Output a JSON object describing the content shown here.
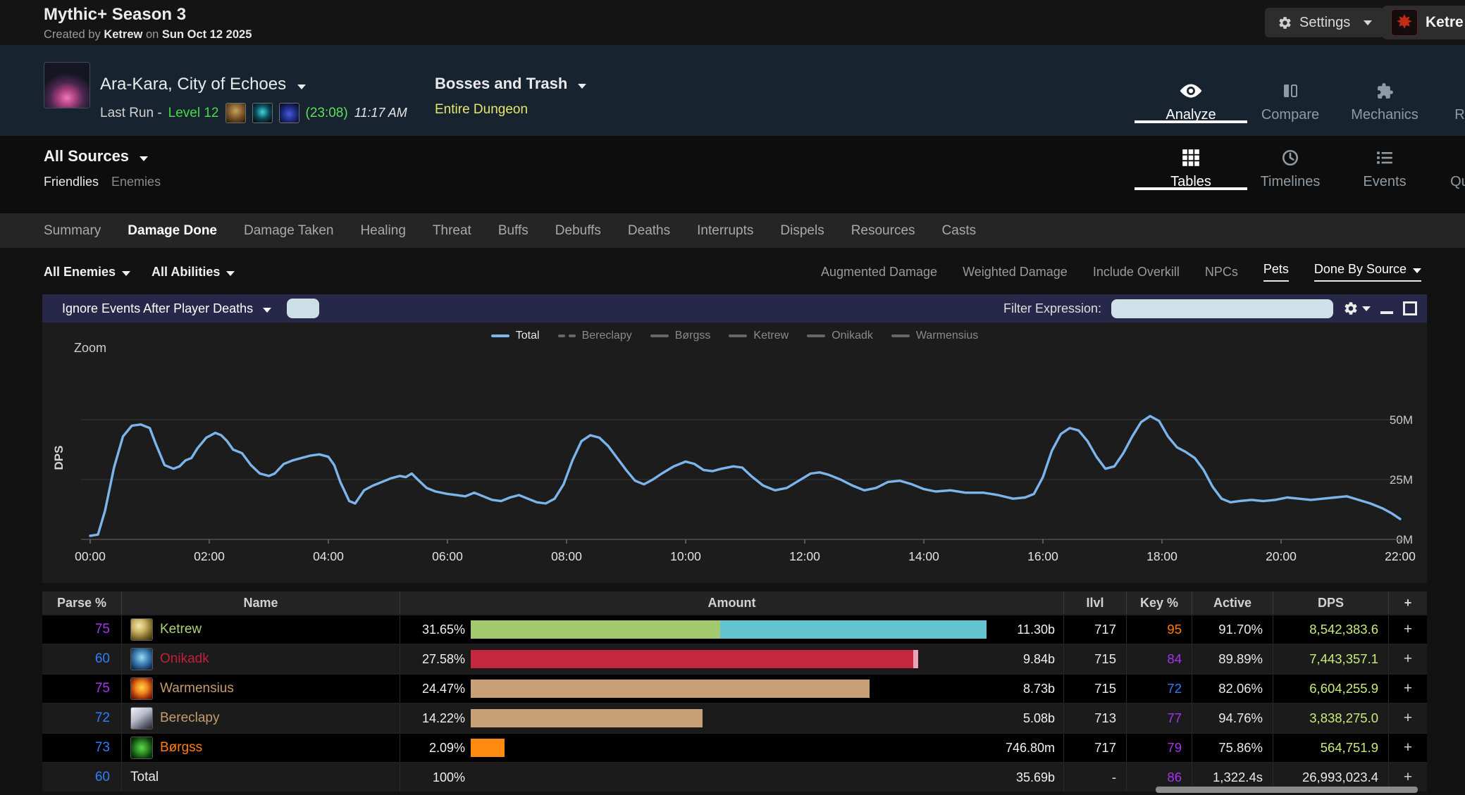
{
  "header": {
    "title": "Mythic+ Season 3",
    "byline_prefix": "Created by",
    "byline_author": "Ketrew",
    "byline_on": "on",
    "byline_date": "Sun Oct 12 2025",
    "settings_label": "Settings",
    "account_label": "Ketre"
  },
  "report_bar": {
    "dungeon": "Ara-Kara, City of Echoes",
    "run_prefix": "Last Run -",
    "run_level": "Level 12",
    "run_level_color": "#49d849",
    "keystone_time": "(23:08)",
    "keystone_time_color": "#5ce05c",
    "wall_time": "11:17 AM",
    "pull_label": "Bosses and Trash",
    "pull_scope": "Entire Dungeon",
    "pull_scope_color": "#e6e66e",
    "views": [
      {
        "label": "Analyze",
        "active": true
      },
      {
        "label": "Compare",
        "active": false
      },
      {
        "label": "Mechanics",
        "active": false
      },
      {
        "label": "Ra",
        "active": false
      }
    ]
  },
  "source_bar": {
    "dropdown_label": "All Sources",
    "friendlies": "Friendlies",
    "enemies": "Enemies",
    "views": [
      {
        "label": "Tables",
        "active": true
      },
      {
        "label": "Timelines",
        "active": false
      },
      {
        "label": "Events",
        "active": false
      },
      {
        "label": "Que",
        "active": false
      }
    ]
  },
  "tabs": [
    {
      "label": "Summary",
      "active": false
    },
    {
      "label": "Damage Done",
      "active": true
    },
    {
      "label": "Damage Taken",
      "active": false
    },
    {
      "label": "Healing",
      "active": false
    },
    {
      "label": "Threat",
      "active": false
    },
    {
      "label": "Buffs",
      "active": false
    },
    {
      "label": "Debuffs",
      "active": false
    },
    {
      "label": "Deaths",
      "active": false
    },
    {
      "label": "Interrupts",
      "active": false
    },
    {
      "label": "Dispels",
      "active": false
    },
    {
      "label": "Resources",
      "active": false
    },
    {
      "label": "Casts",
      "active": false
    }
  ],
  "options_row": {
    "left": [
      {
        "label": "All Enemies"
      },
      {
        "label": "All Abilities"
      }
    ],
    "right": [
      {
        "label": "Augmented Damage",
        "active": false,
        "caret": false
      },
      {
        "label": "Weighted Damage",
        "active": false,
        "caret": false
      },
      {
        "label": "Include Overkill",
        "active": false,
        "caret": false
      },
      {
        "label": "NPCs",
        "active": false,
        "caret": false
      },
      {
        "label": "Pets",
        "active": true,
        "caret": false
      },
      {
        "label": "Done By Source",
        "active": true,
        "caret": true
      }
    ]
  },
  "filter_bar": {
    "deaths_dropdown": "Ignore Events After Player Deaths",
    "filter_label": "Filter Expression:",
    "filter_value": ""
  },
  "chart_data": {
    "type": "line",
    "zoom_label": "Zoom",
    "ylabel": "DPS",
    "x_tick_labels": [
      "00:00",
      "02:00",
      "04:00",
      "06:00",
      "08:00",
      "10:00",
      "12:00",
      "14:00",
      "16:00",
      "18:00",
      "20:00",
      "22:00"
    ],
    "y_ticks": [
      {
        "label": "0M",
        "value": 0
      },
      {
        "label": "25M",
        "value": 25
      },
      {
        "label": "50M",
        "value": 50
      }
    ],
    "x_range_minutes": [
      0,
      22
    ],
    "y_range_millions": [
      0,
      74
    ],
    "grid": true,
    "legend_position": "top-center",
    "legend": [
      {
        "label": "Total",
        "color": "#7cb5ec",
        "text_color": "#e8e8e8",
        "dashed": false
      },
      {
        "label": "Bereclapy",
        "color": "#666666",
        "text_color": "#8a8a8a",
        "dashed": true
      },
      {
        "label": "Børgss",
        "color": "#666666",
        "text_color": "#8a8a8a",
        "dashed": false
      },
      {
        "label": "Ketrew",
        "color": "#666666",
        "text_color": "#8a8a8a",
        "dashed": false
      },
      {
        "label": "Onikadk",
        "color": "#666666",
        "text_color": "#8a8a8a",
        "dashed": false
      },
      {
        "label": "Warmensius",
        "color": "#666666",
        "text_color": "#8a8a8a",
        "dashed": false
      }
    ],
    "series": [
      {
        "name": "Total",
        "color": "#7cb5ec",
        "x_minutes": [
          0,
          0.13,
          0.25,
          0.4,
          0.55,
          0.7,
          0.85,
          1.0,
          1.1,
          1.25,
          1.4,
          1.5,
          1.6,
          1.7,
          1.8,
          1.95,
          2.1,
          2.2,
          2.3,
          2.4,
          2.55,
          2.7,
          2.85,
          3.0,
          3.1,
          3.25,
          3.4,
          3.55,
          3.7,
          3.85,
          4.0,
          4.1,
          4.2,
          4.35,
          4.45,
          4.6,
          4.75,
          4.9,
          5.05,
          5.2,
          5.3,
          5.4,
          5.5,
          5.65,
          5.8,
          6.0,
          6.15,
          6.3,
          6.45,
          6.6,
          6.75,
          6.9,
          7.05,
          7.2,
          7.35,
          7.5,
          7.65,
          7.8,
          7.95,
          8.1,
          8.25,
          8.4,
          8.55,
          8.7,
          8.85,
          9.0,
          9.15,
          9.3,
          9.45,
          9.6,
          9.8,
          10.0,
          10.15,
          10.3,
          10.45,
          10.6,
          10.8,
          10.95,
          11.1,
          11.3,
          11.5,
          11.7,
          11.9,
          12.1,
          12.25,
          12.4,
          12.6,
          12.8,
          13.0,
          13.2,
          13.4,
          13.6,
          13.8,
          14.0,
          14.2,
          14.45,
          14.7,
          15.0,
          15.25,
          15.5,
          15.7,
          15.85,
          16.0,
          16.15,
          16.3,
          16.45,
          16.6,
          16.75,
          16.9,
          17.05,
          17.2,
          17.35,
          17.5,
          17.65,
          17.8,
          17.95,
          18.1,
          18.25,
          18.4,
          18.55,
          18.7,
          18.85,
          19.0,
          19.15,
          19.3,
          19.5,
          19.7,
          19.9,
          20.1,
          20.3,
          20.5,
          20.7,
          20.9,
          21.1,
          21.3,
          21.5,
          21.7,
          21.85,
          22.0
        ],
        "y_dps_millions": [
          1.5,
          2,
          12,
          30,
          43,
          47.5,
          48,
          46.5,
          40,
          31,
          29.5,
          30.5,
          33,
          34,
          38,
          42.5,
          44.5,
          43.5,
          41,
          37.5,
          36,
          31,
          27.5,
          26.5,
          27.5,
          31.5,
          33,
          34,
          35,
          35.5,
          34.5,
          31,
          24,
          16,
          15,
          20.5,
          22.5,
          24,
          25.5,
          26.5,
          26,
          27.5,
          25,
          21.5,
          20,
          19,
          18.5,
          18,
          19.5,
          18,
          16.5,
          16,
          17.5,
          18.5,
          17,
          15.5,
          15,
          17,
          23,
          33,
          41,
          43.5,
          42.5,
          39,
          34,
          29,
          24.5,
          23,
          25,
          27.5,
          30.5,
          32.5,
          31.5,
          29,
          28.5,
          29.5,
          30.5,
          30,
          26.5,
          22.5,
          20.5,
          21.5,
          24.5,
          27.5,
          28,
          27,
          25,
          22.5,
          20.5,
          21.5,
          24,
          24.5,
          23,
          21,
          20,
          20.5,
          19.5,
          19.5,
          18.5,
          17,
          17.5,
          19,
          26,
          37,
          44,
          46.5,
          45.5,
          41,
          34.5,
          29.5,
          30.5,
          36,
          43,
          49,
          51.5,
          49.5,
          43,
          38.5,
          36.5,
          34,
          29,
          22,
          17,
          15.5,
          16,
          16.5,
          16,
          16.5,
          17.5,
          17,
          16.5,
          17,
          17.5,
          18,
          16.5,
          15,
          13,
          11,
          8.5
        ]
      }
    ]
  },
  "table": {
    "headers": [
      "Parse %",
      "Name",
      "Amount",
      "Ilvl",
      "Key %",
      "Active",
      "DPS",
      "+"
    ],
    "rows": [
      {
        "parse": "75",
        "parse_color": "#a335ee",
        "name": "Ketrew",
        "name_color": "#aad372",
        "icon": "ketrew",
        "pct": "31.65%",
        "bar_segments": [
          {
            "color": "#a3c96e",
            "width_pct": 48.3
          },
          {
            "color": "#63c4cf",
            "width_pct": 51.7
          }
        ],
        "amount": "11.30b",
        "ilvl": "717",
        "key": "95",
        "key_color": "#ff8000",
        "active": "91.70%",
        "dps": "8,542,383.6",
        "dps_color": "#c8ec76",
        "expand": "+"
      },
      {
        "parse": "60",
        "parse_color": "#2e7eff",
        "name": "Onikadk",
        "name_color": "#c41e3a",
        "icon": "onikadk",
        "pct": "27.58%",
        "bar_segments": [
          {
            "color": "#c4283e",
            "width_pct": 85.8
          },
          {
            "color": "#eda4b0",
            "width_pct": 1.0
          }
        ],
        "amount": "9.84b",
        "ilvl": "715",
        "key": "84",
        "key_color": "#a335ee",
        "active": "89.89%",
        "dps": "7,443,357.1",
        "dps_color": "#c8ec76",
        "expand": "+"
      },
      {
        "parse": "75",
        "parse_color": "#a335ee",
        "name": "Warmensius",
        "name_color": "#c69b6d",
        "icon": "warmensius",
        "pct": "24.47%",
        "bar_segments": [
          {
            "color": "#c8a076",
            "width_pct": 77.3
          }
        ],
        "amount": "8.73b",
        "ilvl": "715",
        "key": "72",
        "key_color": "#2e7eff",
        "active": "82.06%",
        "dps": "6,604,255.9",
        "dps_color": "#c8ec76",
        "expand": "+"
      },
      {
        "parse": "72",
        "parse_color": "#2e7eff",
        "name": "Bereclapy",
        "name_color": "#c69b6d",
        "icon": "bereclapy",
        "pct": "14.22%",
        "bar_segments": [
          {
            "color": "#c8a076",
            "width_pct": 44.9
          }
        ],
        "amount": "5.08b",
        "ilvl": "713",
        "key": "77",
        "key_color": "#a335ee",
        "active": "94.76%",
        "dps": "3,838,275.0",
        "dps_color": "#c8ec76",
        "expand": "+"
      },
      {
        "parse": "73",
        "parse_color": "#2e7eff",
        "name": "Børgss",
        "name_color": "#ff7c0a",
        "icon": "borgss",
        "pct": "2.09%",
        "bar_segments": [
          {
            "color": "#ff8a12",
            "width_pct": 6.6
          }
        ],
        "amount": "746.80m",
        "ilvl": "717",
        "key": "79",
        "key_color": "#a335ee",
        "active": "75.86%",
        "dps": "564,751.9",
        "dps_color": "#c8ec76",
        "expand": "+"
      },
      {
        "parse": "60",
        "parse_color": "#2e7eff",
        "name": "Total",
        "name_color": "#e9e9e9",
        "icon": null,
        "pct": "100%",
        "bar_segments": [],
        "amount": "35.69b",
        "ilvl": "-",
        "key": "86",
        "key_color": "#a335ee",
        "active": "1,322.4s",
        "dps": "26,993,023.4",
        "dps_color": "#e9e9e9",
        "expand": "+"
      }
    ]
  }
}
